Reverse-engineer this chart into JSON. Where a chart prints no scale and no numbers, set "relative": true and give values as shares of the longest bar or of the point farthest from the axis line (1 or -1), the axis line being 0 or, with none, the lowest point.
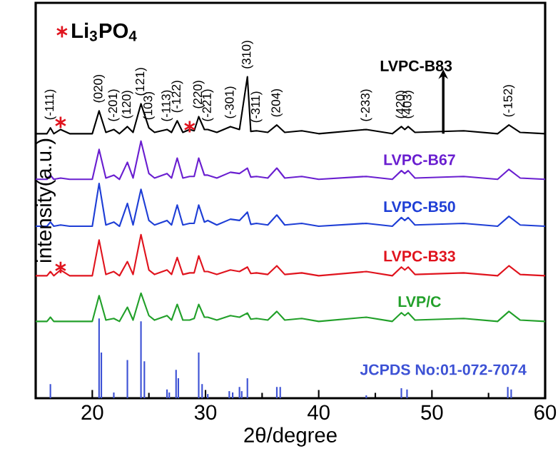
{
  "chart_data": {
    "type": "line",
    "relative": true,
    "xlabel": "2θ/degree",
    "ylabel": "intensity(a.u.)",
    "xlim": [
      15,
      60
    ],
    "xticks": [
      20,
      30,
      40,
      50,
      60
    ],
    "tick_labels": "x",
    "legend": "top left",
    "series": [
      {
        "name": "LVPC-B83",
        "color": "#000000",
        "x": [
          15,
          16,
          16.3,
          16.6,
          17.2,
          18,
          20,
          20.6,
          21.2,
          21.9,
          22.4,
          23.1,
          23.6,
          24.3,
          25.0,
          25.5,
          26.6,
          27.0,
          27.5,
          28.0,
          28.6,
          29.0,
          29.4,
          29.9,
          30.2,
          31.0,
          32.2,
          33.0,
          33.7,
          34.0,
          34.5,
          35.5,
          36.3,
          37.0,
          38.5,
          40,
          44.2,
          46.5,
          47.3,
          47.6,
          47.9,
          48.5,
          52.8,
          55.8,
          56.8,
          57.8,
          60
        ],
        "values": [
          0.823,
          0.823,
          0.841,
          0.823,
          0.836,
          0.823,
          0.823,
          0.894,
          0.827,
          0.836,
          0.823,
          0.845,
          0.827,
          0.916,
          0.841,
          0.827,
          0.836,
          0.827,
          0.863,
          0.827,
          0.836,
          0.832,
          0.876,
          0.836,
          0.836,
          0.827,
          0.845,
          0.836,
          1.0,
          0.83,
          0.832,
          0.827,
          0.85,
          0.827,
          0.832,
          0.823,
          0.836,
          0.823,
          0.845,
          0.836,
          0.845,
          0.827,
          0.832,
          0.823,
          0.85,
          0.827,
          0.823
        ]
      },
      {
        "name": "LVPC-B67",
        "color": "#6a1fd0",
        "x": [
          15,
          16,
          16.3,
          16.6,
          17.2,
          18,
          20,
          20.6,
          21.2,
          21.9,
          22.4,
          23.1,
          23.6,
          24.3,
          25.0,
          25.5,
          26.6,
          27.0,
          27.5,
          28.0,
          28.6,
          29.0,
          29.4,
          29.9,
          30.2,
          31.0,
          32.2,
          33.0,
          33.7,
          34.0,
          34.5,
          35.5,
          36.3,
          37.0,
          38.5,
          40,
          44.2,
          46.5,
          47.3,
          47.6,
          47.9,
          48.5,
          52.8,
          55.8,
          56.8,
          57.8,
          60
        ],
        "values": [
          0.681,
          0.681,
          0.694,
          0.681,
          0.685,
          0.681,
          0.681,
          0.774,
          0.685,
          0.694,
          0.681,
          0.734,
          0.685,
          0.8,
          0.699,
          0.685,
          0.699,
          0.685,
          0.747,
          0.685,
          0.69,
          0.69,
          0.747,
          0.694,
          0.694,
          0.685,
          0.703,
          0.699,
          0.716,
          0.688,
          0.69,
          0.685,
          0.716,
          0.685,
          0.69,
          0.681,
          0.69,
          0.681,
          0.708,
          0.699,
          0.708,
          0.685,
          0.69,
          0.681,
          0.712,
          0.685,
          0.681
        ]
      },
      {
        "name": "LVPC-B50",
        "color": "#1f3fd6",
        "x": [
          15,
          16,
          16.3,
          16.6,
          17.2,
          18,
          20,
          20.6,
          21.2,
          21.9,
          22.4,
          23.1,
          23.6,
          24.3,
          25.0,
          25.5,
          26.6,
          27.0,
          27.5,
          28.0,
          28.6,
          29.0,
          29.4,
          29.9,
          30.2,
          31.0,
          32.2,
          33.0,
          33.7,
          34.0,
          34.5,
          35.5,
          36.3,
          37.0,
          38.5,
          40,
          44.2,
          46.5,
          47.3,
          47.6,
          47.9,
          48.5,
          52.8,
          55.8,
          56.8,
          57.8,
          60
        ],
        "values": [
          0.535,
          0.535,
          0.548,
          0.535,
          0.539,
          0.535,
          0.535,
          0.668,
          0.539,
          0.548,
          0.535,
          0.606,
          0.539,
          0.65,
          0.553,
          0.539,
          0.553,
          0.539,
          0.601,
          0.539,
          0.544,
          0.544,
          0.601,
          0.548,
          0.553,
          0.539,
          0.557,
          0.553,
          0.579,
          0.541,
          0.544,
          0.539,
          0.57,
          0.539,
          0.544,
          0.535,
          0.544,
          0.535,
          0.562,
          0.553,
          0.562,
          0.539,
          0.544,
          0.535,
          0.566,
          0.539,
          0.535
        ]
      },
      {
        "name": "LVPC-B33",
        "color": "#e0141e",
        "x": [
          15,
          16,
          16.3,
          16.6,
          17.2,
          18,
          20,
          20.6,
          21.2,
          21.9,
          22.4,
          23.1,
          23.6,
          24.3,
          25.0,
          25.5,
          26.6,
          27.0,
          27.5,
          28.0,
          28.6,
          29.0,
          29.4,
          29.9,
          30.2,
          31.0,
          32.2,
          33.0,
          33.7,
          34.0,
          34.5,
          35.5,
          36.3,
          37.0,
          38.5,
          40,
          44.2,
          46.5,
          47.3,
          47.6,
          47.9,
          48.5,
          52.8,
          55.8,
          56.8,
          57.8,
          60
        ],
        "values": [
          0.381,
          0.381,
          0.394,
          0.381,
          0.399,
          0.381,
          0.381,
          0.492,
          0.385,
          0.394,
          0.381,
          0.425,
          0.385,
          0.509,
          0.399,
          0.385,
          0.399,
          0.385,
          0.438,
          0.385,
          0.39,
          0.39,
          0.443,
          0.394,
          0.394,
          0.385,
          0.399,
          0.394,
          0.408,
          0.388,
          0.39,
          0.385,
          0.412,
          0.385,
          0.39,
          0.381,
          0.394,
          0.381,
          0.408,
          0.399,
          0.408,
          0.385,
          0.39,
          0.381,
          0.412,
          0.385,
          0.381
        ]
      },
      {
        "name": "LVP/C",
        "color": "#22a02a",
        "x": [
          15,
          16,
          16.3,
          16.6,
          17.2,
          18,
          20,
          20.6,
          21.2,
          21.9,
          22.4,
          23.1,
          23.6,
          24.3,
          25.0,
          25.5,
          26.6,
          27.0,
          27.5,
          28.0,
          28.6,
          29.0,
          29.4,
          29.9,
          30.2,
          31.0,
          32.2,
          33.0,
          33.7,
          34.0,
          34.5,
          35.5,
          36.3,
          37.0,
          38.5,
          40,
          44.2,
          46.5,
          47.3,
          47.6,
          47.9,
          48.5,
          52.8,
          55.8,
          56.8,
          57.8,
          60
        ],
        "values": [
          0.239,
          0.239,
          0.252,
          0.239,
          0.239,
          0.239,
          0.239,
          0.319,
          0.243,
          0.248,
          0.239,
          0.283,
          0.243,
          0.327,
          0.257,
          0.243,
          0.257,
          0.243,
          0.292,
          0.243,
          0.243,
          0.248,
          0.292,
          0.252,
          0.252,
          0.243,
          0.257,
          0.252,
          0.265,
          0.246,
          0.248,
          0.243,
          0.27,
          0.243,
          0.248,
          0.239,
          0.252,
          0.239,
          0.266,
          0.257,
          0.266,
          0.243,
          0.248,
          0.239,
          0.27,
          0.243,
          0.239
        ]
      },
      {
        "name": "JCPDS No:01-072-7074",
        "type": "bar",
        "color": "#3d52d5",
        "x": [
          16.3,
          20.6,
          20.8,
          21.9,
          23.1,
          24.3,
          24.6,
          26.6,
          26.8,
          27.4,
          27.6,
          29.4,
          29.7,
          30.2,
          32.1,
          32.4,
          33.0,
          33.2,
          33.7,
          36.3,
          36.6,
          44.2,
          47.3,
          47.8,
          56.7,
          57.0
        ],
        "values": [
          0.044,
          0.248,
          0.142,
          0.018,
          0.119,
          0.239,
          0.115,
          0.027,
          0.018,
          0.088,
          0.062,
          0.142,
          0.044,
          0.013,
          0.022,
          0.018,
          0.035,
          0.022,
          0.062,
          0.035,
          0.035,
          0.009,
          0.031,
          0.027,
          0.035,
          0.027
        ]
      },
      {
        "name": "Li$_{3}$PO$_{4}$",
        "type": "scatter",
        "marker": "cross",
        "color": "#e0141e",
        "x": [
          17.2,
          28.6,
          17.2
        ],
        "values": [
          0.858,
          0.845,
          0.407
        ]
      }
    ],
    "annotations": [
      {
        "text": "(-111)",
        "x": 16.3,
        "y": 0.841
      },
      {
        "text": "(020)",
        "x": 20.6,
        "y": 0.894
      },
      {
        "text": "(-201)",
        "x": 21.9,
        "y": 0.836
      },
      {
        "text": "(120)",
        "x": 23.1,
        "y": 0.845
      },
      {
        "text": "(121)",
        "x": 24.3,
        "y": 0.916
      },
      {
        "text": "(103)",
        "x": 25.0,
        "y": 0.841
      },
      {
        "text": "(-113)",
        "x": 26.6,
        "y": 0.836
      },
      {
        "text": "(-122)",
        "x": 27.5,
        "y": 0.863
      },
      {
        "text": "(220)",
        "x": 29.4,
        "y": 0.876
      },
      {
        "text": "(-221)",
        "x": 30.2,
        "y": 0.836
      },
      {
        "text": "(-301)",
        "x": 32.2,
        "y": 0.845
      },
      {
        "text": "(310)",
        "x": 33.7,
        "y": 1.0
      },
      {
        "text": "(-311)",
        "x": 34.5,
        "y": 0.832
      },
      {
        "text": "(204)",
        "x": 36.3,
        "y": 0.85
      },
      {
        "text": "(-233)",
        "x": 44.2,
        "y": 0.836
      },
      {
        "text": "(420)",
        "x": 47.3,
        "y": 0.845
      },
      {
        "text": "(403)",
        "x": 47.9,
        "y": 0.845
      },
      {
        "text": "(-152)",
        "x": 56.8,
        "y": 0.85
      }
    ]
  }
}
